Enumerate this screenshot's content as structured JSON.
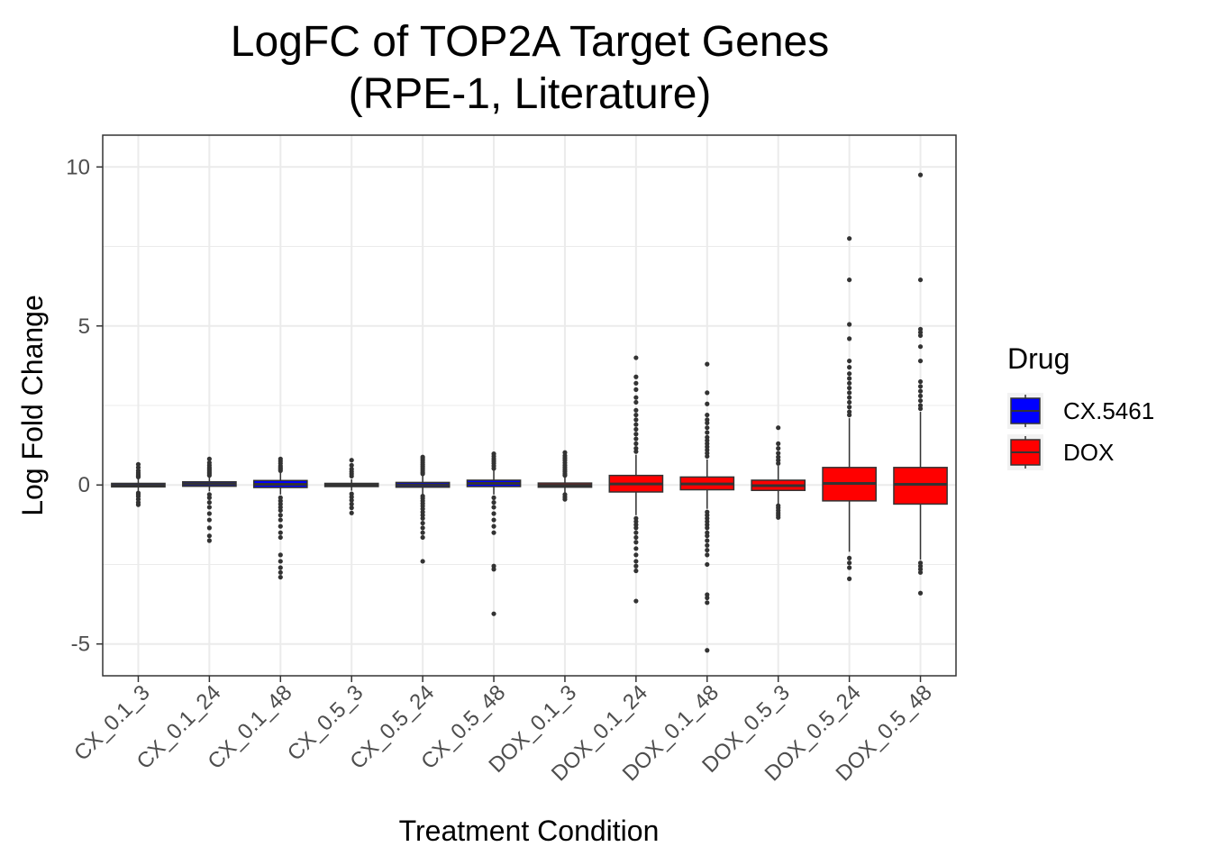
{
  "chart_data": {
    "type": "box",
    "title": "LogFC of TOP2A Target Genes",
    "subtitle": "(RPE-1, Literature)",
    "xlabel": "Treatment Condition",
    "ylabel": "Log Fold Change",
    "ylim": [
      -6,
      11
    ],
    "yticks": [
      -5,
      0,
      5,
      10
    ],
    "grid": true,
    "legend": {
      "title": "Drug",
      "position": "right",
      "entries": [
        {
          "label": "CX.5461",
          "color": "#0000ff"
        },
        {
          "label": "DOX",
          "color": "#ff0000"
        }
      ]
    },
    "categories": [
      "CX_0.1_3",
      "CX_0.1_24",
      "CX_0.1_48",
      "CX_0.5_3",
      "CX_0.5_24",
      "CX_0.5_48",
      "DOX_0.1_3",
      "DOX_0.1_24",
      "DOX_0.1_48",
      "DOX_0.5_3",
      "DOX_0.5_24",
      "DOX_0.5_48"
    ],
    "boxes": [
      {
        "category": "CX_0.1_3",
        "drug": "CX.5461",
        "q1": -0.06,
        "median": -0.01,
        "q3": 0.05,
        "whisker_low": -0.2,
        "whisker_high": 0.2,
        "outliers": [
          0.65,
          0.55,
          0.45,
          0.38,
          0.32,
          0.28,
          0.25,
          -0.25,
          -0.3,
          -0.36,
          -0.45,
          -0.55,
          -0.62
        ]
      },
      {
        "category": "CX_0.1_24",
        "drug": "CX.5461",
        "q1": -0.04,
        "median": 0.03,
        "q3": 0.1,
        "whisker_low": -0.2,
        "whisker_high": 0.25,
        "outliers": [
          0.82,
          0.7,
          0.62,
          0.55,
          0.5,
          0.45,
          0.4,
          0.35,
          0.3,
          -0.3,
          -0.4,
          -0.55,
          -0.7,
          -0.9,
          -1.1,
          -1.35,
          -1.6,
          -1.75
        ]
      },
      {
        "category": "CX_0.1_48",
        "drug": "CX.5461",
        "q1": -0.08,
        "median": 0.02,
        "q3": 0.14,
        "whisker_low": -0.3,
        "whisker_high": 0.4,
        "outliers": [
          0.82,
          0.75,
          0.68,
          0.6,
          0.55,
          0.5,
          0.45,
          -0.4,
          -0.5,
          -0.6,
          -0.7,
          -0.8,
          -0.95,
          -1.1,
          -1.3,
          -1.5,
          -1.65,
          -2.2,
          -2.4,
          -2.6,
          -2.75,
          -2.9
        ]
      },
      {
        "category": "CX_0.5_3",
        "drug": "CX.5461",
        "q1": -0.05,
        "median": 0.0,
        "q3": 0.05,
        "whisker_low": -0.18,
        "whisker_high": 0.18,
        "outliers": [
          0.78,
          0.62,
          0.5,
          0.42,
          0.35,
          0.28,
          -0.28,
          -0.38,
          -0.48,
          -0.6,
          -0.72,
          -0.88
        ]
      },
      {
        "category": "CX_0.5_24",
        "drug": "CX.5461",
        "q1": -0.07,
        "median": 0.0,
        "q3": 0.08,
        "whisker_low": -0.3,
        "whisker_high": 0.3,
        "outliers": [
          0.88,
          0.82,
          0.76,
          0.7,
          0.64,
          0.58,
          0.52,
          0.46,
          0.4,
          0.35,
          -0.35,
          -0.42,
          -0.5,
          -0.58,
          -0.66,
          -0.75,
          -0.85,
          -0.95,
          -1.05,
          -1.2,
          -1.35,
          -1.5,
          -1.65,
          -2.4
        ]
      },
      {
        "category": "CX_0.5_48",
        "drug": "CX.5461",
        "q1": -0.05,
        "median": 0.05,
        "q3": 0.15,
        "whisker_low": -0.3,
        "whisker_high": 0.45,
        "outliers": [
          0.98,
          0.9,
          0.82,
          0.75,
          0.68,
          0.6,
          0.52,
          -0.4,
          -0.55,
          -0.7,
          -0.9,
          -1.1,
          -1.3,
          -1.5,
          -2.55,
          -2.65,
          -4.05
        ]
      },
      {
        "category": "DOX_0.1_3",
        "drug": "DOX",
        "q1": -0.07,
        "median": -0.01,
        "q3": 0.06,
        "whisker_low": -0.25,
        "whisker_high": 0.25,
        "outliers": [
          1.02,
          0.92,
          0.85,
          0.78,
          0.7,
          0.62,
          0.55,
          0.48,
          0.42,
          0.35,
          0.3,
          -0.3,
          -0.38,
          -0.45
        ]
      },
      {
        "category": "DOX_0.1_24",
        "drug": "DOX",
        "q1": -0.22,
        "median": 0.03,
        "q3": 0.3,
        "whisker_low": -0.95,
        "whisker_high": 0.95,
        "outliers": [
          4.0,
          3.4,
          3.2,
          3.0,
          2.75,
          2.6,
          2.35,
          2.2,
          2.05,
          1.9,
          1.75,
          1.6,
          1.45,
          1.3,
          1.15,
          1.05,
          -1.05,
          -1.15,
          -1.25,
          -1.35,
          -1.5,
          -1.65,
          -1.8,
          -2.0,
          -2.2,
          -2.4,
          -2.55,
          -2.7,
          -3.65
        ]
      },
      {
        "category": "DOX_0.1_48",
        "drug": "DOX",
        "q1": -0.15,
        "median": 0.03,
        "q3": 0.25,
        "whisker_low": -0.75,
        "whisker_high": 0.8,
        "outliers": [
          3.8,
          2.9,
          2.55,
          2.2,
          2.05,
          1.95,
          1.8,
          1.65,
          1.5,
          1.4,
          1.3,
          1.2,
          1.1,
          1.0,
          0.9,
          -0.85,
          -0.95,
          -1.05,
          -1.15,
          -1.25,
          -1.35,
          -1.5,
          -1.6,
          -1.75,
          -1.9,
          -2.05,
          -2.2,
          -2.5,
          -3.45,
          -3.55,
          -3.7,
          -5.2
        ]
      },
      {
        "category": "DOX_0.5_3",
        "drug": "DOX",
        "q1": -0.17,
        "median": -0.02,
        "q3": 0.15,
        "whisker_low": -0.6,
        "whisker_high": 0.6,
        "outliers": [
          1.8,
          1.3,
          1.15,
          1.0,
          0.88,
          0.78,
          0.68,
          -0.65,
          -0.72,
          -0.8,
          -0.88,
          -0.95,
          -1.02
        ]
      },
      {
        "category": "DOX_0.5_24",
        "drug": "DOX",
        "q1": -0.5,
        "median": 0.05,
        "q3": 0.55,
        "whisker_low": -2.1,
        "whisker_high": 2.1,
        "outliers": [
          7.75,
          6.45,
          5.05,
          4.6,
          3.9,
          3.7,
          3.5,
          3.35,
          3.2,
          3.05,
          2.9,
          2.75,
          2.6,
          2.45,
          2.3,
          2.2,
          -2.3,
          -2.45,
          -2.6,
          -2.95
        ]
      },
      {
        "category": "DOX_0.5_48",
        "drug": "DOX",
        "q1": -0.6,
        "median": 0.02,
        "q3": 0.55,
        "whisker_low": -2.35,
        "whisker_high": 2.3,
        "outliers": [
          9.75,
          6.45,
          4.9,
          4.8,
          4.7,
          4.35,
          3.9,
          3.25,
          3.1,
          2.95,
          2.8,
          2.65,
          2.5,
          2.4,
          -2.45,
          -2.55,
          -2.65,
          -2.75,
          -3.4
        ]
      }
    ]
  }
}
